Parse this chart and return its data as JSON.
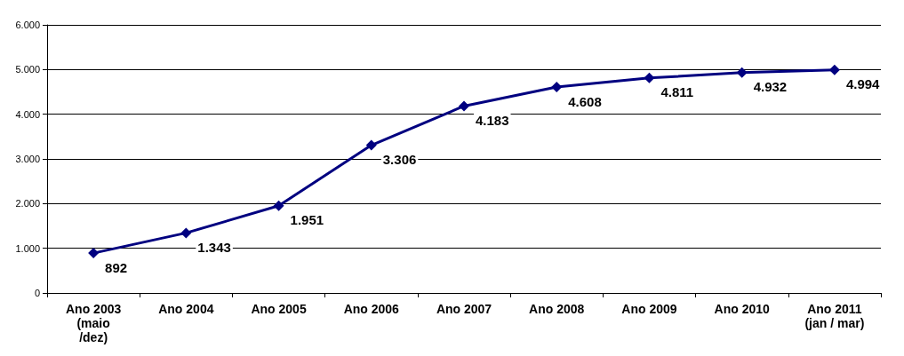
{
  "chart_data": {
    "type": "line",
    "categories": [
      "Ano 2003\n(maio\n/dez)",
      "Ano 2004",
      "Ano 2005",
      "Ano 2006",
      "Ano 2007",
      "Ano 2008",
      "Ano 2009",
      "Ano 2010",
      "Ano 2011\n(jan / mar)"
    ],
    "series": [
      {
        "color": "#000080",
        "values": [
          892,
          1343,
          1951,
          3306,
          4183,
          4608,
          4811,
          4932,
          4994
        ],
        "value_labels": [
          "892",
          "1.343",
          "1.951",
          "3.306",
          "4.183",
          "4.608",
          "4.811",
          "4.932",
          "4.994"
        ]
      }
    ],
    "ylim": [
      0,
      6000
    ],
    "yticks": [
      {
        "value": 0,
        "label": "0"
      },
      {
        "value": 1000,
        "label": "1.000"
      },
      {
        "value": 2000,
        "label": "2.000"
      },
      {
        "value": 3000,
        "label": "3.000"
      },
      {
        "value": 4000,
        "label": "4.000"
      },
      {
        "value": 5000,
        "label": "5.000"
      },
      {
        "value": 6000,
        "label": "6.000"
      }
    ],
    "grid": "y",
    "marker": "diamond",
    "line_style": "solid"
  }
}
